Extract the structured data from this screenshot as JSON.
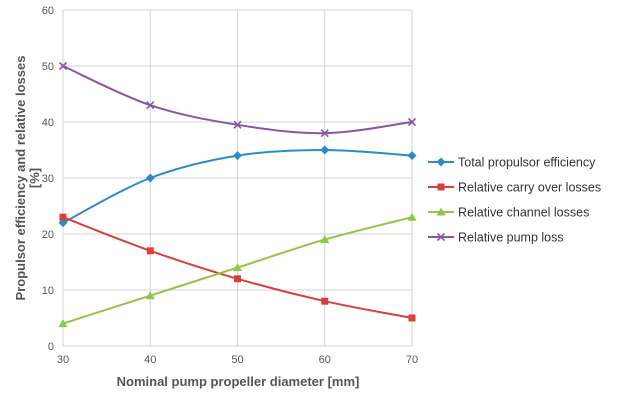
{
  "chart_data": {
    "type": "line",
    "title": "",
    "xlabel": "Nominal pump propeller diameter  [mm]",
    "ylabel_line1": "Propulsor efficiency and relative losses",
    "ylabel_line2": "[%]",
    "x": [
      30,
      40,
      50,
      60,
      70
    ],
    "xlim": [
      30,
      70
    ],
    "ylim": [
      0,
      60
    ],
    "x_ticks": [
      "30",
      "40",
      "50",
      "60",
      "70"
    ],
    "y_ticks": [
      "0",
      "10",
      "20",
      "30",
      "40",
      "50",
      "60"
    ],
    "grid": true,
    "legend_position": "right",
    "series": [
      {
        "name": "Total propulsor efficiency",
        "values": [
          22,
          30,
          34,
          35,
          34
        ],
        "color": "#2e8bc9",
        "marker": "diamond"
      },
      {
        "name": "Relative carry over losses",
        "values": [
          23,
          17,
          12,
          8,
          5
        ],
        "color": "#d9403b",
        "marker": "square"
      },
      {
        "name": "Relative channel losses",
        "values": [
          4,
          9,
          14,
          19,
          23
        ],
        "color": "#8ec744",
        "marker": "triangle"
      },
      {
        "name": "Relative pump loss",
        "values": [
          50,
          43,
          39.5,
          38,
          40
        ],
        "color": "#8a55a8",
        "marker": "x"
      }
    ]
  }
}
